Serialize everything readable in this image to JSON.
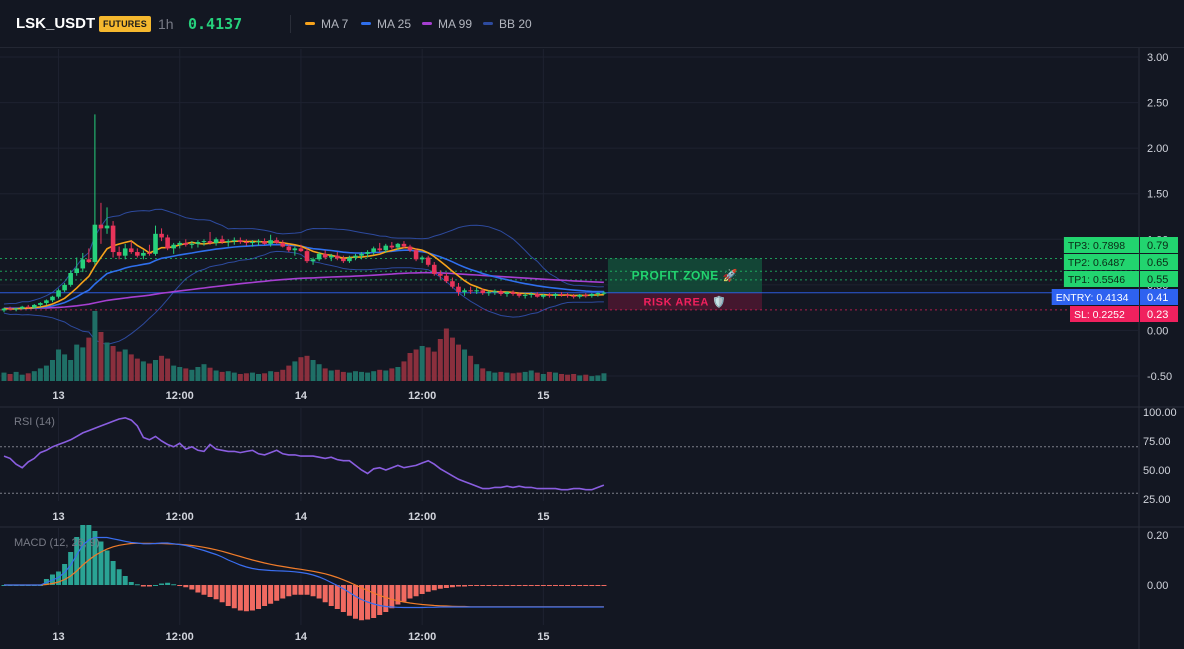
{
  "header": {
    "symbol": "LSK_USDT",
    "badge": "FUTURES",
    "timeframe": "1h",
    "price": "0.4137",
    "legend": [
      {
        "label": "MA 7",
        "color": "#f7a21b"
      },
      {
        "label": "MA 25",
        "color": "#2f6fec"
      },
      {
        "label": "MA 99",
        "color": "#a63fd1"
      },
      {
        "label": "BB 20",
        "color": "#2d4a9e"
      }
    ]
  },
  "colors": {
    "background": "#131722",
    "up": "#26d07c",
    "down": "#e8345a",
    "volume_up": "#1f6f66",
    "volume_down": "#8a2f3d",
    "ma7": "#f7a21b",
    "ma25": "#2f6fec",
    "ma99": "#a63fd1",
    "bb": "#2d4a9e",
    "rsi": "#8a5ee0",
    "macd": "#3a6ef0",
    "signal": "#f07c2a",
    "hist_up": "#2aa394",
    "hist_down": "#f06a61",
    "entry": "#2e62f0",
    "sl": "#f0215e",
    "tp": "#22d46f"
  },
  "x_axis": {
    "ticks": [
      {
        "label": "13",
        "candle": 9
      },
      {
        "label": "12:00",
        "candle": 29
      },
      {
        "label": "14",
        "candle": 49
      },
      {
        "label": "12:00",
        "candle": 69
      },
      {
        "label": "15",
        "candle": 89
      }
    ]
  },
  "price_axis": {
    "ticks": [
      "3.00",
      "2.50",
      "2.00",
      "1.50",
      "1.00",
      "0.50",
      "0.00",
      "-0.50"
    ]
  },
  "rsi_panel": {
    "label": "RSI (14)",
    "ticks": [
      "100.00",
      "75.00",
      "50.00",
      "25.00"
    ],
    "levels": [
      70,
      30
    ]
  },
  "macd_panel": {
    "label": "MACD (12, 26, 9)",
    "ticks": [
      "0.20",
      "0.00"
    ]
  },
  "levels": [
    {
      "key": "tp3",
      "label": "TP3: 0.7898",
      "axis": "0.79",
      "value": 0.7898,
      "style": "tp"
    },
    {
      "key": "tp2",
      "label": "TP2: 0.6487",
      "axis": "0.65",
      "value": 0.6487,
      "style": "tp"
    },
    {
      "key": "tp1",
      "label": "TP1: 0.5546",
      "axis": "0.55",
      "value": 0.5546,
      "style": "tp"
    },
    {
      "key": "entry",
      "label": "ENTRY: 0.4134",
      "axis": "0.41",
      "value": 0.4134,
      "style": "entry"
    },
    {
      "key": "sl",
      "label": "SL: 0.2252",
      "axis": "0.23",
      "value": 0.2252,
      "style": "sl"
    }
  ],
  "zones": {
    "profit": "PROFIT ZONE 🚀",
    "risk": "RISK AREA 🛡️"
  },
  "chart_data": {
    "type": "candlestick",
    "candle_count": 100,
    "price_range": [
      -0.5,
      3.0
    ],
    "rsi_range": [
      25,
      100
    ],
    "macd_range": [
      -0.1,
      0.2
    ],
    "candles": [
      [
        0.22,
        0.25,
        0.2,
        0.24
      ],
      [
        0.24,
        0.26,
        0.22,
        0.23
      ],
      [
        0.23,
        0.25,
        0.21,
        0.24
      ],
      [
        0.24,
        0.27,
        0.23,
        0.26
      ],
      [
        0.26,
        0.28,
        0.24,
        0.25
      ],
      [
        0.25,
        0.29,
        0.24,
        0.28
      ],
      [
        0.28,
        0.31,
        0.26,
        0.3
      ],
      [
        0.3,
        0.34,
        0.28,
        0.33
      ],
      [
        0.33,
        0.38,
        0.31,
        0.37
      ],
      [
        0.37,
        0.46,
        0.35,
        0.44
      ],
      [
        0.44,
        0.52,
        0.42,
        0.5
      ],
      [
        0.5,
        0.66,
        0.48,
        0.63
      ],
      [
        0.63,
        0.8,
        0.6,
        0.68
      ],
      [
        0.68,
        0.85,
        0.64,
        0.78
      ],
      [
        0.78,
        0.9,
        0.74,
        0.75
      ],
      [
        0.75,
        2.37,
        0.72,
        1.16
      ],
      [
        1.16,
        1.4,
        0.95,
        1.12
      ],
      [
        1.12,
        1.35,
        1.06,
        1.15
      ],
      [
        1.15,
        1.2,
        0.8,
        0.86
      ],
      [
        0.86,
        0.92,
        0.78,
        0.82
      ],
      [
        0.82,
        0.95,
        0.78,
        0.9
      ],
      [
        0.9,
        0.98,
        0.84,
        0.86
      ],
      [
        0.86,
        0.9,
        0.8,
        0.82
      ],
      [
        0.82,
        0.88,
        0.78,
        0.85
      ],
      [
        0.85,
        0.94,
        0.82,
        0.84
      ],
      [
        0.84,
        1.15,
        0.82,
        1.06
      ],
      [
        1.06,
        1.12,
        0.98,
        1.02
      ],
      [
        1.02,
        1.05,
        0.88,
        0.9
      ],
      [
        0.9,
        0.96,
        0.84,
        0.94
      ],
      [
        0.94,
        0.98,
        0.9,
        0.96
      ],
      [
        0.96,
        1.0,
        0.92,
        0.94
      ],
      [
        0.94,
        0.98,
        0.9,
        0.95
      ],
      [
        0.95,
        0.99,
        0.91,
        0.97
      ],
      [
        0.97,
        1.0,
        0.93,
        0.98
      ],
      [
        0.98,
        1.08,
        0.94,
        0.96
      ],
      [
        0.96,
        1.02,
        0.93,
        1.0
      ],
      [
        1.0,
        1.04,
        0.95,
        0.97
      ],
      [
        0.97,
        1.0,
        0.92,
        0.98
      ],
      [
        0.98,
        1.02,
        0.94,
        0.99
      ],
      [
        0.99,
        1.02,
        0.95,
        0.97
      ],
      [
        0.97,
        1.0,
        0.93,
        0.96
      ],
      [
        0.96,
        0.99,
        0.92,
        0.97
      ],
      [
        0.97,
        1.0,
        0.93,
        0.98
      ],
      [
        0.98,
        1.01,
        0.94,
        0.95
      ],
      [
        0.95,
        1.05,
        0.92,
        0.99
      ],
      [
        0.99,
        1.02,
        0.95,
        0.96
      ],
      [
        0.96,
        0.99,
        0.91,
        0.92
      ],
      [
        0.92,
        0.95,
        0.86,
        0.88
      ],
      [
        0.88,
        0.92,
        0.82,
        0.9
      ],
      [
        0.9,
        0.94,
        0.86,
        0.87
      ],
      [
        0.87,
        0.9,
        0.74,
        0.76
      ],
      [
        0.76,
        0.8,
        0.72,
        0.78
      ],
      [
        0.78,
        0.86,
        0.76,
        0.84
      ],
      [
        0.84,
        0.88,
        0.78,
        0.8
      ],
      [
        0.8,
        0.84,
        0.76,
        0.82
      ],
      [
        0.82,
        0.86,
        0.77,
        0.79
      ],
      [
        0.79,
        0.82,
        0.74,
        0.76
      ],
      [
        0.76,
        0.82,
        0.74,
        0.8
      ],
      [
        0.8,
        0.84,
        0.77,
        0.82
      ],
      [
        0.82,
        0.86,
        0.78,
        0.84
      ],
      [
        0.84,
        0.88,
        0.8,
        0.86
      ],
      [
        0.86,
        0.92,
        0.83,
        0.9
      ],
      [
        0.9,
        0.96,
        0.86,
        0.88
      ],
      [
        0.88,
        0.95,
        0.85,
        0.93
      ],
      [
        0.93,
        0.97,
        0.89,
        0.91
      ],
      [
        0.91,
        0.96,
        0.88,
        0.95
      ],
      [
        0.95,
        0.98,
        0.9,
        0.92
      ],
      [
        0.92,
        0.94,
        0.86,
        0.88
      ],
      [
        0.88,
        0.9,
        0.76,
        0.78
      ],
      [
        0.78,
        0.82,
        0.74,
        0.8
      ],
      [
        0.8,
        0.82,
        0.7,
        0.72
      ],
      [
        0.72,
        0.75,
        0.6,
        0.62
      ],
      [
        0.62,
        0.66,
        0.56,
        0.6
      ],
      [
        0.6,
        0.63,
        0.52,
        0.54
      ],
      [
        0.54,
        0.58,
        0.46,
        0.48
      ],
      [
        0.48,
        0.52,
        0.38,
        0.42
      ],
      [
        0.42,
        0.46,
        0.38,
        0.44
      ],
      [
        0.44,
        0.48,
        0.4,
        0.43
      ],
      [
        0.43,
        0.47,
        0.4,
        0.44
      ],
      [
        0.44,
        0.46,
        0.39,
        0.41
      ],
      [
        0.41,
        0.44,
        0.38,
        0.42
      ],
      [
        0.42,
        0.45,
        0.39,
        0.43
      ],
      [
        0.43,
        0.45,
        0.38,
        0.4
      ],
      [
        0.4,
        0.43,
        0.37,
        0.42
      ],
      [
        0.42,
        0.44,
        0.38,
        0.4
      ],
      [
        0.4,
        0.42,
        0.36,
        0.38
      ],
      [
        0.38,
        0.41,
        0.35,
        0.39
      ],
      [
        0.39,
        0.42,
        0.36,
        0.4
      ],
      [
        0.4,
        0.42,
        0.36,
        0.37
      ],
      [
        0.37,
        0.4,
        0.35,
        0.39
      ],
      [
        0.39,
        0.41,
        0.36,
        0.38
      ],
      [
        0.38,
        0.41,
        0.35,
        0.4
      ],
      [
        0.4,
        0.42,
        0.37,
        0.39
      ],
      [
        0.39,
        0.41,
        0.36,
        0.38
      ],
      [
        0.38,
        0.4,
        0.35,
        0.37
      ],
      [
        0.37,
        0.4,
        0.35,
        0.39
      ],
      [
        0.39,
        0.41,
        0.36,
        0.38
      ],
      [
        0.38,
        0.41,
        0.36,
        0.4
      ],
      [
        0.4,
        0.42,
        0.37,
        0.41
      ],
      [
        0.41,
        0.43,
        0.39,
        0.4137
      ]
    ],
    "volume": [
      0.12,
      0.1,
      0.13,
      0.09,
      0.11,
      0.14,
      0.18,
      0.22,
      0.3,
      0.45,
      0.38,
      0.3,
      0.52,
      0.48,
      0.62,
      1.0,
      0.7,
      0.55,
      0.5,
      0.42,
      0.45,
      0.38,
      0.32,
      0.28,
      0.25,
      0.3,
      0.36,
      0.32,
      0.22,
      0.2,
      0.18,
      0.16,
      0.2,
      0.24,
      0.19,
      0.15,
      0.13,
      0.14,
      0.12,
      0.1,
      0.11,
      0.12,
      0.1,
      0.11,
      0.14,
      0.13,
      0.16,
      0.22,
      0.28,
      0.34,
      0.36,
      0.3,
      0.24,
      0.18,
      0.15,
      0.16,
      0.13,
      0.12,
      0.14,
      0.13,
      0.12,
      0.14,
      0.16,
      0.15,
      0.18,
      0.2,
      0.28,
      0.4,
      0.45,
      0.5,
      0.48,
      0.42,
      0.6,
      0.75,
      0.62,
      0.52,
      0.45,
      0.36,
      0.24,
      0.18,
      0.14,
      0.12,
      0.13,
      0.12,
      0.11,
      0.12,
      0.13,
      0.15,
      0.12,
      0.1,
      0.13,
      0.12,
      0.1,
      0.09,
      0.1,
      0.08,
      0.09,
      0.07,
      0.08,
      0.11
    ],
    "rsi": [
      62,
      60,
      55,
      52,
      57,
      60,
      65,
      67,
      70,
      72,
      74,
      76,
      79,
      82,
      84,
      86,
      88,
      90,
      92,
      94,
      95,
      93,
      88,
      78,
      76,
      79,
      75,
      72,
      70,
      73,
      68,
      70,
      67,
      66,
      72,
      68,
      67,
      66,
      66,
      65,
      66,
      67,
      64,
      63,
      65,
      67,
      64,
      63,
      63,
      62,
      62,
      62,
      61,
      60,
      61,
      59,
      58,
      58,
      54,
      50,
      47,
      51,
      52,
      50,
      52,
      54,
      52,
      53,
      54,
      56,
      58,
      55,
      51,
      48,
      45,
      42,
      40,
      38,
      36,
      34,
      34,
      35,
      35,
      36,
      35,
      36,
      35,
      35,
      34,
      34,
      34,
      34,
      33,
      33,
      34,
      34,
      33,
      33,
      35,
      37
    ],
    "macd": [
      0.0,
      0.0,
      0.0,
      0.0,
      0.0,
      0.0,
      0.0,
      0.01,
      0.02,
      0.03,
      0.05,
      0.08,
      0.12,
      0.16,
      0.18,
      0.19,
      0.19,
      0.19,
      0.185,
      0.18,
      0.175,
      0.17,
      0.168,
      0.165,
      0.165,
      0.166,
      0.168,
      0.168,
      0.165,
      0.162,
      0.158,
      0.152,
      0.145,
      0.138,
      0.13,
      0.122,
      0.112,
      0.1,
      0.09,
      0.08,
      0.072,
      0.066,
      0.062,
      0.06,
      0.058,
      0.057,
      0.056,
      0.055,
      0.053,
      0.05,
      0.046,
      0.04,
      0.032,
      0.022,
      0.01,
      -0.002,
      -0.015,
      -0.03,
      -0.045,
      -0.058,
      -0.068,
      -0.076,
      -0.082,
      -0.086,
      -0.088,
      -0.089,
      -0.09,
      -0.09,
      -0.09,
      -0.09,
      -0.089,
      -0.089,
      -0.088,
      -0.088,
      -0.088,
      -0.088,
      -0.088,
      -0.088,
      -0.088,
      -0.088,
      -0.088,
      -0.088,
      -0.088,
      -0.088,
      -0.088,
      -0.088,
      -0.088,
      -0.088,
      -0.088,
      -0.088,
      -0.088,
      -0.088,
      -0.088,
      -0.088,
      -0.088,
      -0.088,
      -0.088,
      -0.088,
      -0.088,
      -0.088
    ],
    "signal": [
      0.0,
      0.0,
      0.0,
      0.0,
      0.0,
      0.0,
      0.0,
      0.002,
      0.006,
      0.012,
      0.022,
      0.036,
      0.056,
      0.08,
      0.1,
      0.118,
      0.132,
      0.144,
      0.153,
      0.159,
      0.163,
      0.166,
      0.167,
      0.167,
      0.167,
      0.166,
      0.166,
      0.165,
      0.164,
      0.163,
      0.161,
      0.158,
      0.155,
      0.151,
      0.146,
      0.141,
      0.135,
      0.128,
      0.121,
      0.114,
      0.107,
      0.1,
      0.094,
      0.088,
      0.083,
      0.078,
      0.074,
      0.07,
      0.066,
      0.063,
      0.059,
      0.055,
      0.05,
      0.045,
      0.038,
      0.03,
      0.021,
      0.011,
      0.0,
      -0.011,
      -0.022,
      -0.032,
      -0.042,
      -0.05,
      -0.057,
      -0.063,
      -0.068,
      -0.072,
      -0.075,
      -0.078,
      -0.08,
      -0.082,
      -0.083,
      -0.084,
      -0.085,
      -0.086,
      -0.086,
      -0.087,
      -0.087,
      -0.087,
      -0.087,
      -0.087,
      -0.087,
      -0.087,
      -0.087,
      -0.087,
      -0.087,
      -0.087,
      -0.087,
      -0.087,
      -0.087,
      -0.087,
      -0.087,
      -0.087,
      -0.087,
      -0.087,
      -0.087,
      -0.087,
      -0.087,
      -0.087
    ]
  }
}
